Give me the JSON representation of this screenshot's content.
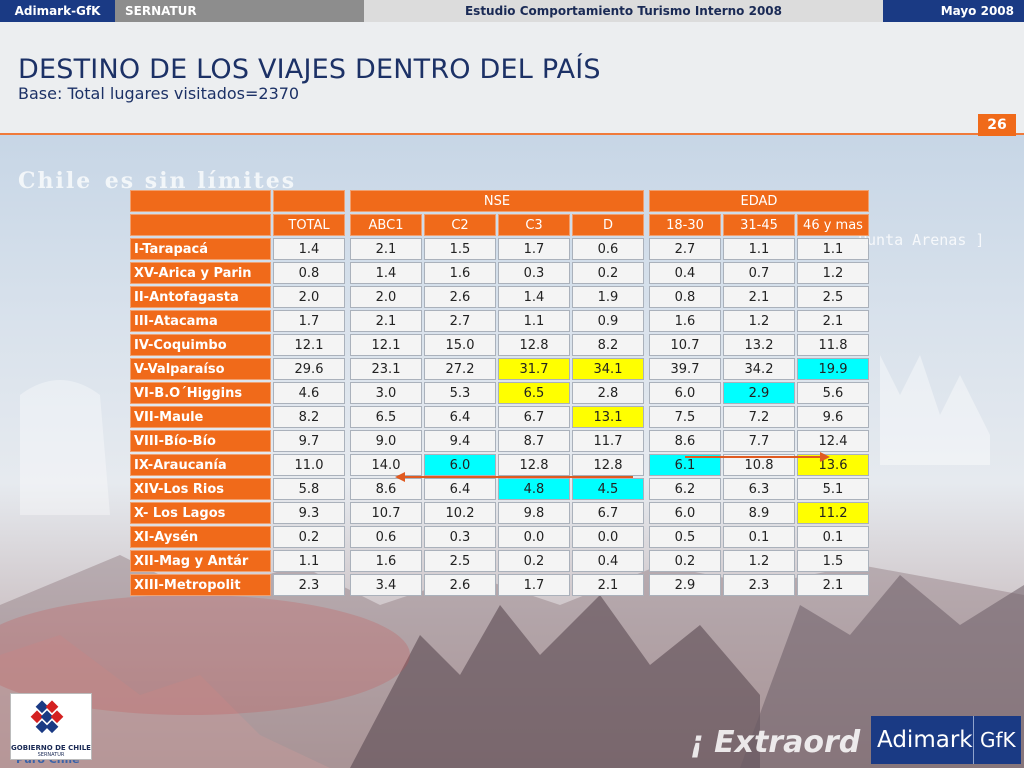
{
  "topbar": {
    "company": "Adimark-GfK",
    "client": "SERNATUR",
    "study": "Estudio Comportamiento Turismo Interno 2008",
    "date": "Mayo 2008"
  },
  "header": {
    "title": "DESTINO DE LOS VIAJES DENTRO DEL PAÍS",
    "subtitle": "Base: Total lugares visitados=2370",
    "page_number": "26"
  },
  "watermarks": {
    "chile": "Chile",
    "chile_tail": "es sin límites",
    "punta_arenas": "Punta Arenas ]",
    "extraordinario": "¡ Extraord",
    "puro_chile": "Puro Chile"
  },
  "table": {
    "group_nse": "NSE",
    "group_edad": "EDAD",
    "columns": [
      "TOTAL",
      "ABC1",
      "C2",
      "C3",
      "D",
      "18-30",
      "31-45",
      "46 y mas"
    ],
    "rows": [
      {
        "region": "I-Tarapacá",
        "values": [
          "1.4",
          "2.1",
          "1.5",
          "1.7",
          "0.6",
          "2.7",
          "1.1",
          "1.1"
        ],
        "highlights": [
          "",
          "",
          "",
          "",
          "",
          "",
          "",
          ""
        ]
      },
      {
        "region": "XV-Arica y Parin",
        "values": [
          "0.8",
          "1.4",
          "1.6",
          "0.3",
          "0.2",
          "0.4",
          "0.7",
          "1.2"
        ],
        "highlights": [
          "",
          "",
          "",
          "",
          "",
          "",
          "",
          ""
        ]
      },
      {
        "region": "II-Antofagasta",
        "values": [
          "2.0",
          "2.0",
          "2.6",
          "1.4",
          "1.9",
          "0.8",
          "2.1",
          "2.5"
        ],
        "highlights": [
          "",
          "",
          "",
          "",
          "",
          "",
          "",
          ""
        ]
      },
      {
        "region": "III-Atacama",
        "values": [
          "1.7",
          "2.1",
          "2.7",
          "1.1",
          "0.9",
          "1.6",
          "1.2",
          "2.1"
        ],
        "highlights": [
          "",
          "",
          "",
          "",
          "",
          "",
          "",
          ""
        ]
      },
      {
        "region": "IV-Coquimbo",
        "values": [
          "12.1",
          "12.1",
          "15.0",
          "12.8",
          "8.2",
          "10.7",
          "13.2",
          "11.8"
        ],
        "highlights": [
          "",
          "",
          "",
          "",
          "",
          "",
          "",
          ""
        ]
      },
      {
        "region": "V-Valparaíso",
        "values": [
          "29.6",
          "23.1",
          "27.2",
          "31.7",
          "34.1",
          "39.7",
          "34.2",
          "19.9"
        ],
        "highlights": [
          "",
          "",
          "",
          "yellow",
          "yellow",
          "",
          "",
          "cyan"
        ]
      },
      {
        "region": "VI-B.O´Higgins",
        "values": [
          "4.6",
          "3.0",
          "5.3",
          "6.5",
          "2.8",
          "6.0",
          "2.9",
          "5.6"
        ],
        "highlights": [
          "",
          "",
          "",
          "yellow",
          "",
          "",
          "cyan",
          ""
        ]
      },
      {
        "region": "VII-Maule",
        "values": [
          "8.2",
          "6.5",
          "6.4",
          "6.7",
          "13.1",
          "7.5",
          "7.2",
          "9.6"
        ],
        "highlights": [
          "",
          "",
          "",
          "",
          "yellow",
          "",
          "",
          ""
        ]
      },
      {
        "region": "VIII-Bío-Bío",
        "values": [
          "9.7",
          "9.0",
          "9.4",
          "8.7",
          "11.7",
          "8.6",
          "7.7",
          "12.4"
        ],
        "highlights": [
          "",
          "",
          "",
          "",
          "",
          "",
          "",
          ""
        ]
      },
      {
        "region": "IX-Araucanía",
        "values": [
          "11.0",
          "14.0",
          "6.0",
          "12.8",
          "12.8",
          "6.1",
          "10.8",
          "13.6"
        ],
        "highlights": [
          "",
          "",
          "cyan",
          "",
          "",
          "cyan",
          "",
          "yellow"
        ]
      },
      {
        "region": "XIV-Los Rios",
        "values": [
          "5.8",
          "8.6",
          "6.4",
          "4.8",
          "4.5",
          "6.2",
          "6.3",
          "5.1"
        ],
        "highlights": [
          "",
          "",
          "",
          "cyan",
          "cyan",
          "",
          "",
          ""
        ]
      },
      {
        "region": "X- Los Lagos",
        "values": [
          "9.3",
          "10.7",
          "10.2",
          "9.8",
          "6.7",
          "6.0",
          "8.9",
          "11.2"
        ],
        "highlights": [
          "",
          "",
          "",
          "",
          "",
          "",
          "",
          "yellow"
        ]
      },
      {
        "region": "XI-Aysén",
        "values": [
          "0.2",
          "0.6",
          "0.3",
          "0.0",
          "0.0",
          "0.5",
          "0.1",
          "0.1"
        ],
        "highlights": [
          "",
          "",
          "",
          "",
          "",
          "",
          "",
          ""
        ]
      },
      {
        "region": "XII-Mag y Antár",
        "values": [
          "1.1",
          "1.6",
          "2.5",
          "0.2",
          "0.4",
          "0.2",
          "1.2",
          "1.5"
        ],
        "highlights": [
          "",
          "",
          "",
          "",
          "",
          "",
          "",
          ""
        ]
      },
      {
        "region": "XIII-Metropolit",
        "values": [
          "2.3",
          "3.4",
          "2.6",
          "1.7",
          "2.1",
          "2.9",
          "2.3",
          "2.1"
        ],
        "highlights": [
          "",
          "",
          "",
          "",
          "",
          "",
          "",
          ""
        ]
      }
    ]
  },
  "logos": {
    "gobierno": "GOBIERNO DE CHILE",
    "gobierno_sub": "SERNATUR",
    "adimark": "Adimark",
    "gfk": "GfK"
  },
  "colors": {
    "orange": "#f06a1a",
    "navy": "#1a3a84",
    "highlight_yellow": "#ffff00",
    "highlight_cyan": "#00ffff"
  }
}
